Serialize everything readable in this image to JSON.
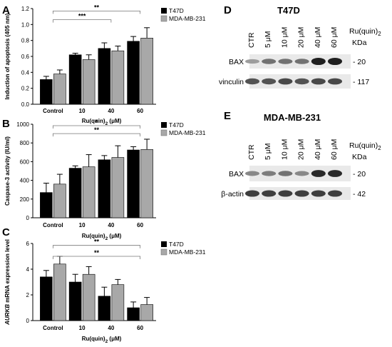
{
  "panels": {
    "A": "A",
    "B": "B",
    "C": "C",
    "D": "D",
    "E": "E"
  },
  "legend": {
    "series1": "T47D",
    "series2": "MDA-MB-231"
  },
  "colors": {
    "series1": "#000000",
    "series2": "#a8a8a8"
  },
  "chart_data": [
    {
      "type": "bar",
      "panel": "A",
      "ylabel": "Induction of apoptosis (405 nm)",
      "xlabel": "Ru(quin)",
      "xlabel_sub": "2",
      "xlabel_unit": " (μM)",
      "categories": [
        "Control",
        "10",
        "40",
        "60"
      ],
      "ylim": [
        0,
        1.2
      ],
      "yticks": [
        "0.0",
        "0.2",
        "0.4",
        "0.6",
        "0.8",
        "1.0",
        "1.2"
      ],
      "series": [
        {
          "name": "T47D",
          "values": [
            0.31,
            0.62,
            0.7,
            0.79
          ],
          "errors": [
            0.04,
            0.02,
            0.07,
            0.06
          ]
        },
        {
          "name": "MDA-MB-231",
          "values": [
            0.38,
            0.56,
            0.67,
            0.83
          ],
          "errors": [
            0.05,
            0.06,
            0.06,
            0.13
          ]
        }
      ],
      "significance": [
        {
          "label": "***",
          "from": 0,
          "to": 2,
          "level": 1.06
        },
        {
          "label": "**",
          "from": 0,
          "to": 3,
          "level": 1.17
        }
      ]
    },
    {
      "type": "bar",
      "panel": "B",
      "ylabel": "Caspase-3 activity (IU/ml)",
      "xlabel": "Ru(quin)",
      "xlabel_sub": "2",
      "xlabel_unit": " (μM)",
      "categories": [
        "Control",
        "10",
        "40",
        "60"
      ],
      "ylim": [
        0,
        1000
      ],
      "yticks": [
        "0",
        "200",
        "400",
        "600",
        "800",
        "1000"
      ],
      "series": [
        {
          "name": "T47D",
          "values": [
            270,
            530,
            620,
            725
          ],
          "errors": [
            100,
            25,
            45,
            35
          ]
        },
        {
          "name": "MDA-MB-231",
          "values": [
            360,
            545,
            645,
            730
          ],
          "errors": [
            105,
            130,
            125,
            110
          ]
        }
      ],
      "significance": [
        {
          "label": "**",
          "from": 0,
          "to": 3,
          "level": 900
        },
        {
          "label": "*",
          "from": 0,
          "to": 3,
          "level": 985
        }
      ]
    },
    {
      "type": "bar",
      "panel": "C",
      "ylabel_italic": "AURKB",
      "ylabel": " mRNA expression level",
      "xlabel": "Ru(quin)",
      "xlabel_sub": "2",
      "xlabel_unit": " (μM)",
      "categories": [
        "Control",
        "10",
        "40",
        "60"
      ],
      "ylim": [
        0,
        6
      ],
      "yticks": [
        "0",
        "2",
        "4",
        "6"
      ],
      "series": [
        {
          "name": "T47D",
          "values": [
            3.4,
            3.0,
            1.9,
            1.0
          ],
          "errors": [
            0.5,
            0.6,
            0.7,
            0.45
          ]
        },
        {
          "name": "MDA-MB-231",
          "values": [
            4.4,
            3.6,
            2.8,
            1.25
          ],
          "errors": [
            0.6,
            0.6,
            0.4,
            0.55
          ]
        }
      ],
      "significance": [
        {
          "label": "**",
          "from": 0,
          "to": 3,
          "level": 5.0
        },
        {
          "label": "**",
          "from": 0,
          "to": 3,
          "level": 5.85
        }
      ]
    }
  ],
  "blots": {
    "D": {
      "title": "T47D",
      "lanes": [
        "CTR",
        "5 μM",
        "10 μM",
        "20 μM",
        "40 μM",
        "60 μM"
      ],
      "ru_label": "Ru(quin)",
      "ru_sub": "2",
      "kda": "KDa",
      "rows": [
        {
          "label": "BAX",
          "marker": "- 20",
          "intensity": [
            0.35,
            0.55,
            0.55,
            0.55,
            0.95,
            0.95
          ]
        },
        {
          "label": "vinculin",
          "marker": "- 117",
          "intensity": [
            0.7,
            0.7,
            0.75,
            0.7,
            0.75,
            0.75
          ]
        }
      ]
    },
    "E": {
      "title": "MDA-MB-231",
      "lanes": [
        "CTR",
        "5 μM",
        "10 μM",
        "20 μM",
        "40 μM",
        "60 μM"
      ],
      "ru_label": "Ru(quin)",
      "ru_sub": "2",
      "kda": "KDa",
      "rows": [
        {
          "label": "BAX",
          "marker": "- 20",
          "intensity": [
            0.45,
            0.5,
            0.55,
            0.45,
            0.9,
            0.9
          ]
        },
        {
          "label": "β-actin",
          "marker": "- 42",
          "intensity": [
            0.8,
            0.8,
            0.8,
            0.8,
            0.8,
            0.8
          ]
        }
      ]
    }
  }
}
